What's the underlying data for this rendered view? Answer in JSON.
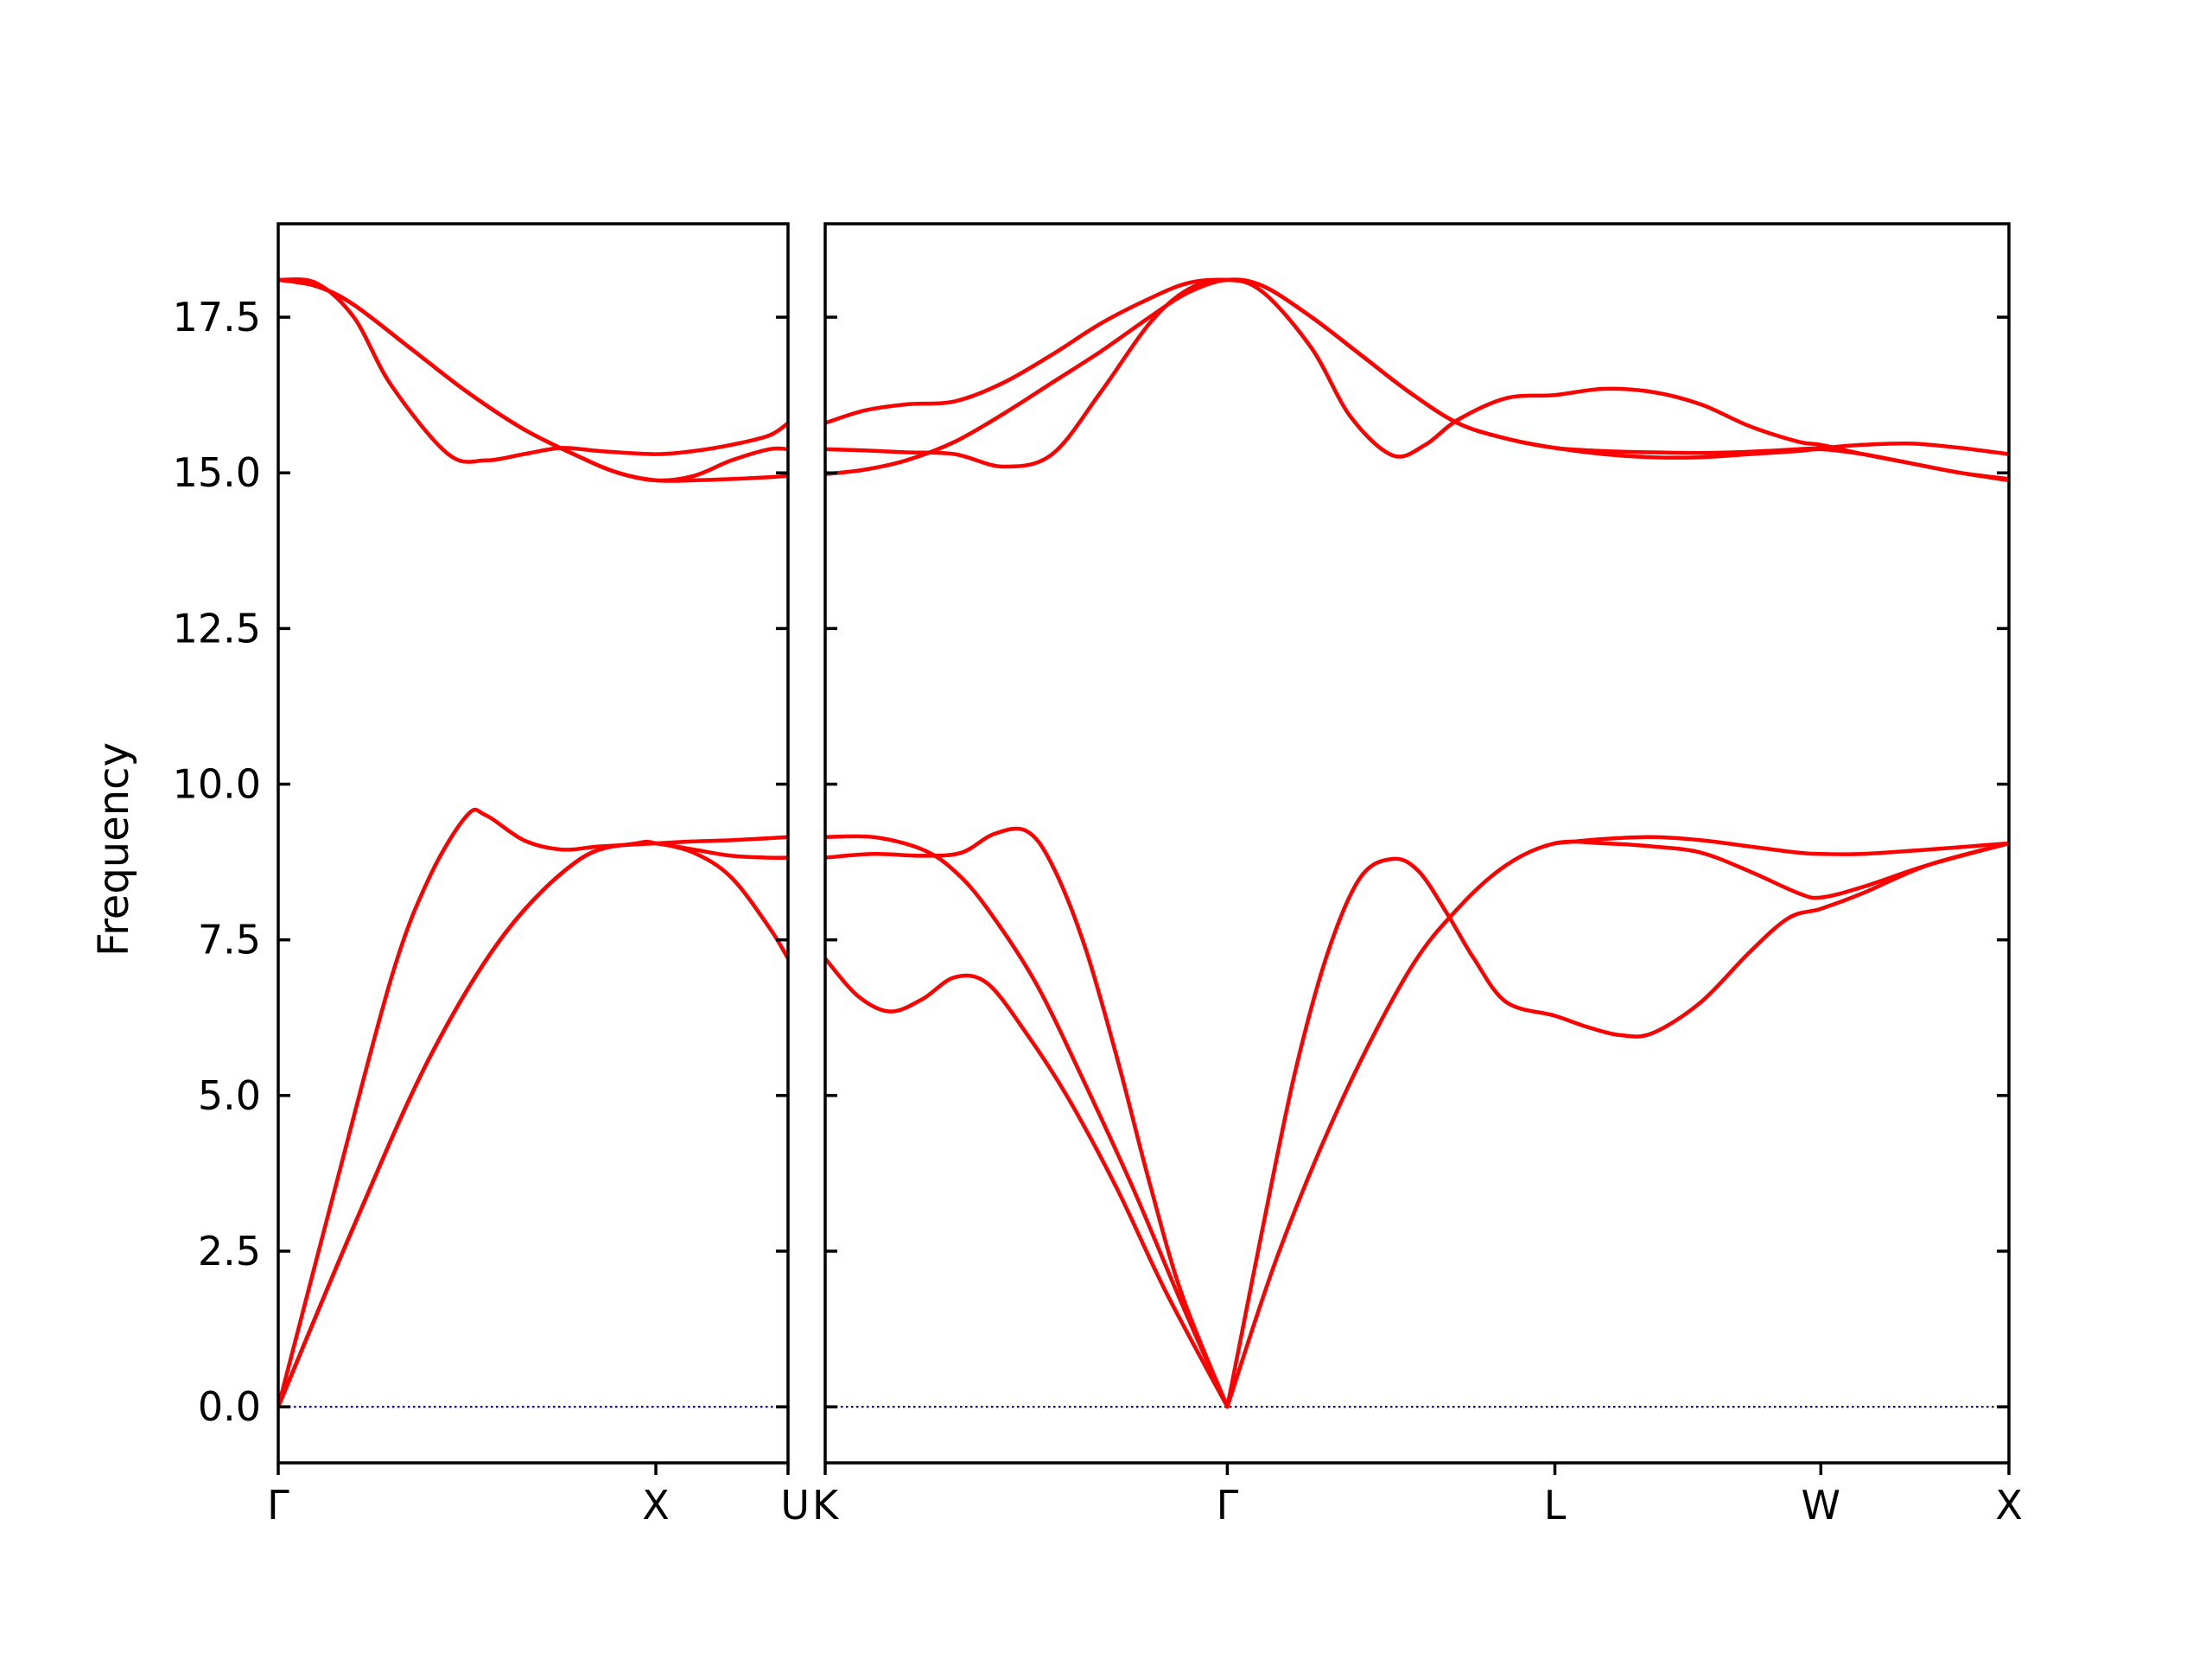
{
  "chart_data": {
    "type": "line",
    "title": "",
    "ylabel": "Frequency",
    "xlabel": "",
    "ylim": [
      -0.9,
      19.0
    ],
    "y_ticks": [
      "0.0",
      "2.5",
      "5.0",
      "7.5",
      "10.0",
      "12.5",
      "15.0",
      "17.5"
    ],
    "grid": false,
    "colors": {
      "bands": "#ff0000",
      "zero_line": "#0000aa",
      "axes": "#000000"
    },
    "panels": [
      {
        "xlim": [
          0,
          1.35
        ],
        "x_ticks": [
          {
            "x": 0.0,
            "label": "Γ"
          },
          {
            "x": 1.0,
            "label": "X"
          },
          {
            "x": 1.35,
            "label": "U"
          }
        ],
        "bands": [
          {
            "x": [
              0,
              0.15,
              0.3,
              0.4,
              0.5,
              0.55,
              0.65,
              0.75,
              0.85,
              1.0,
              1.1,
              1.2,
              1.35
            ],
            "y": [
              0,
              3.5,
              6.9,
              8.5,
              9.5,
              9.5,
              9.1,
              8.95,
              9.0,
              9.05,
              9.08,
              9.1,
              9.15
            ]
          },
          {
            "x": [
              0,
              0.2,
              0.4,
              0.6,
              0.8,
              0.95,
              1.0,
              1.1,
              1.2,
              1.3,
              1.35
            ],
            "y": [
              0,
              2.9,
              5.6,
              7.6,
              8.8,
              9.05,
              9.05,
              8.95,
              8.85,
              8.82,
              8.82
            ]
          },
          {
            "x": [
              0,
              0.2,
              0.4,
              0.6,
              0.8,
              0.95,
              1.0,
              1.1,
              1.2,
              1.3,
              1.35
            ],
            "y": [
              0,
              2.9,
              5.6,
              7.6,
              8.8,
              9.05,
              9.05,
              8.9,
              8.5,
              7.7,
              7.2
            ]
          },
          {
            "x": [
              0,
              0.1,
              0.2,
              0.3,
              0.45,
              0.55,
              0.65,
              0.75,
              0.85,
              1.0,
              1.1,
              1.2,
              1.3,
              1.35
            ],
            "y": [
              18.1,
              18.05,
              17.5,
              16.4,
              15.3,
              15.2,
              15.3,
              15.4,
              15.35,
              15.3,
              15.35,
              15.45,
              15.6,
              15.8
            ]
          },
          {
            "x": [
              0,
              0.1,
              0.2,
              0.35,
              0.5,
              0.65,
              0.8,
              0.9,
              1.0,
              1.1,
              1.2,
              1.3,
              1.35
            ],
            "y": [
              18.1,
              18.0,
              17.7,
              17.0,
              16.3,
              15.7,
              15.25,
              15.0,
              14.88,
              14.88,
              14.9,
              14.93,
              14.95
            ]
          },
          {
            "x": [
              0,
              0.1,
              0.2,
              0.35,
              0.5,
              0.65,
              0.8,
              0.9,
              1.0,
              1.1,
              1.2,
              1.3,
              1.35
            ],
            "y": [
              18.1,
              18.0,
              17.7,
              17.0,
              16.3,
              15.7,
              15.25,
              15.0,
              14.88,
              14.95,
              15.2,
              15.38,
              15.38
            ]
          }
        ]
      },
      {
        "xlim": [
          0,
          3.65
        ],
        "x_ticks": [
          {
            "x": 0.0,
            "label": "K"
          },
          {
            "x": 1.24,
            "label": "Γ"
          },
          {
            "x": 2.25,
            "label": "L"
          },
          {
            "x": 3.07,
            "label": "W"
          },
          {
            "x": 3.65,
            "label": "X"
          }
        ],
        "bands": [
          {
            "x": [
              0,
              0.1,
              0.2,
              0.3,
              0.4,
              0.5,
              0.62,
              0.75,
              0.9,
              1.05,
              1.24
            ],
            "y": [
              7.2,
              6.6,
              6.35,
              6.55,
              6.9,
              6.8,
              6.0,
              4.95,
              3.5,
              1.85,
              0
            ]
          },
          {
            "x": [
              0,
              0.15,
              0.3,
              0.4,
              0.5,
              0.65,
              0.8,
              0.95,
              1.1,
              1.24
            ],
            "y": [
              9.15,
              9.15,
              8.95,
              8.6,
              8.0,
              6.8,
              5.2,
              3.5,
              1.65,
              0
            ]
          },
          {
            "x": [
              0,
              0.15,
              0.3,
              0.42,
              0.52,
              0.62,
              0.7,
              0.8,
              0.9,
              1.0,
              1.1,
              1.24
            ],
            "y": [
              8.82,
              8.88,
              8.85,
              8.9,
              9.2,
              9.25,
              8.7,
              7.4,
              5.6,
              3.6,
              1.8,
              0
            ]
          },
          {
            "x": [
              1.24,
              1.35,
              1.45,
              1.55,
              1.65,
              1.75,
              1.83,
              1.92,
              2.0,
              2.1,
              2.25,
              2.35,
              2.45,
              2.55,
              2.7,
              2.85,
              2.97,
              3.07,
              3.2,
              3.4,
              3.65
            ],
            "y": [
              0,
              2.9,
              5.4,
              7.3,
              8.5,
              8.8,
              8.6,
              7.9,
              7.2,
              6.5,
              6.28,
              6.1,
              5.97,
              6.0,
              6.5,
              7.3,
              7.85,
              8.0,
              8.25,
              8.7,
              9.05
            ]
          },
          {
            "x": [
              1.24,
              1.4,
              1.6,
              1.8,
              1.95,
              2.1,
              2.25,
              2.4,
              2.55,
              2.7,
              2.85,
              3.0,
              3.07,
              3.2,
              3.4,
              3.65
            ],
            "y": [
              0,
              2.5,
              5.0,
              7.0,
              8.0,
              8.7,
              9.05,
              9.05,
              9.0,
              8.9,
              8.6,
              8.25,
              8.18,
              8.35,
              8.7,
              9.05
            ]
          },
          {
            "x": [
              2.25,
              2.4,
              2.55,
              2.7,
              2.85,
              3.0,
              3.07,
              3.2,
              3.4,
              3.65
            ],
            "y": [
              9.05,
              9.12,
              9.15,
              9.1,
              9.0,
              8.9,
              8.88,
              8.88,
              8.95,
              9.05
            ]
          },
          {
            "x": [
              0,
              0.12,
              0.25,
              0.4,
              0.55,
              0.7,
              0.85,
              1.0,
              1.12,
              1.24,
              1.35,
              1.5,
              1.65,
              1.8,
              1.95,
              2.1,
              2.25,
              2.4,
              2.55,
              2.7,
              2.85,
              3.0,
              3.07,
              3.2,
              3.35,
              3.5,
              3.65
            ],
            "y": [
              15.8,
              16.0,
              16.1,
              16.15,
              16.45,
              16.9,
              17.4,
              17.8,
              18.05,
              18.1,
              18.0,
              17.5,
              16.9,
              16.3,
              15.8,
              15.55,
              15.4,
              15.35,
              15.33,
              15.32,
              15.34,
              15.38,
              15.4,
              15.45,
              15.47,
              15.4,
              15.3
            ]
          },
          {
            "x": [
              0,
              0.12,
              0.25,
              0.4,
              0.55,
              0.7,
              0.85,
              1.0,
              1.12,
              1.24,
              1.35,
              1.5,
              1.62,
              1.75,
              1.85,
              1.95,
              2.1,
              2.25,
              2.4,
              2.55,
              2.7,
              2.85,
              3.0,
              3.07,
              3.2,
              3.35,
              3.5,
              3.65
            ],
            "y": [
              15.38,
              15.36,
              15.33,
              15.3,
              15.1,
              15.3,
              16.3,
              17.4,
              17.95,
              18.1,
              17.9,
              17.0,
              15.9,
              15.28,
              15.45,
              15.85,
              16.2,
              16.25,
              16.35,
              16.3,
              16.1,
              15.75,
              15.5,
              15.45,
              15.3,
              15.15,
              15.0,
              14.9
            ]
          },
          {
            "x": [
              0,
              0.12,
              0.25,
              0.4,
              0.55,
              0.7,
              0.85,
              1.0,
              1.12,
              1.24,
              1.35,
              1.5,
              1.65,
              1.8,
              1.95,
              2.1,
              2.25,
              2.4,
              2.55,
              2.7,
              2.85,
              3.0,
              3.07,
              3.2,
              3.35,
              3.5,
              3.65
            ],
            "y": [
              14.98,
              15.05,
              15.2,
              15.5,
              15.95,
              16.45,
              16.95,
              17.5,
              17.9,
              18.1,
              18.0,
              17.5,
              16.9,
              16.3,
              15.8,
              15.55,
              15.4,
              15.3,
              15.25,
              15.25,
              15.3,
              15.35,
              15.38,
              15.3,
              15.15,
              15.0,
              14.88
            ]
          }
        ]
      }
    ]
  }
}
